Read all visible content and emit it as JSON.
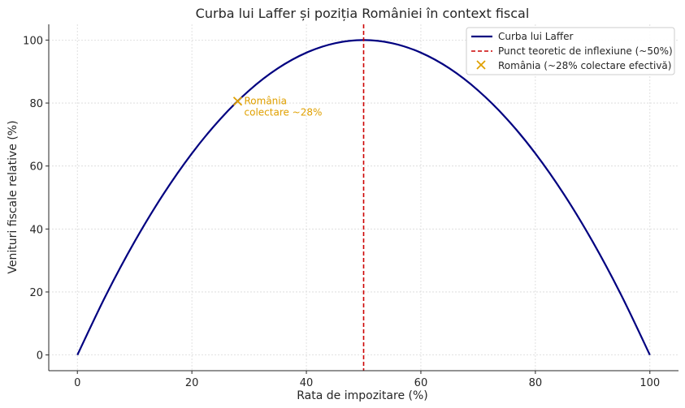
{
  "chart_data": {
    "type": "line",
    "title": "Curba lui Laffer și poziția României în context fiscal",
    "xlabel": "Rata de impozitare (%)",
    "ylabel": "Venituri fiscale relative (%)",
    "xlim": [
      -5,
      105
    ],
    "ylim": [
      -5,
      105
    ],
    "xticks": [
      0,
      20,
      40,
      60,
      80,
      100
    ],
    "yticks": [
      0,
      20,
      40,
      60,
      80,
      100
    ],
    "grid": true,
    "legend_position": "top-right",
    "series": [
      {
        "name": "Curba lui Laffer",
        "kind": "line",
        "color": "#000080",
        "x": [
          0,
          5,
          10,
          15,
          20,
          25,
          30,
          35,
          40,
          45,
          50,
          55,
          60,
          65,
          70,
          75,
          80,
          85,
          90,
          95,
          100
        ],
        "y": [
          0,
          19,
          36,
          51,
          64,
          75,
          84,
          91,
          96,
          99,
          100,
          99,
          96,
          91,
          84,
          75,
          64,
          51,
          36,
          19,
          0
        ]
      },
      {
        "name": "Punct teoretic de inflexiune (~50%)",
        "kind": "vline",
        "color": "#cc0000",
        "x": 50
      },
      {
        "name": "România (~28% colectare efectivă)",
        "kind": "marker",
        "color": "#e0a000",
        "x": 28,
        "y": 80.6
      }
    ],
    "annotations": [
      {
        "lines": [
          "România",
          "colectare ~28%"
        ],
        "x": 28,
        "y": 80.6,
        "color": "#e0a000"
      }
    ]
  }
}
